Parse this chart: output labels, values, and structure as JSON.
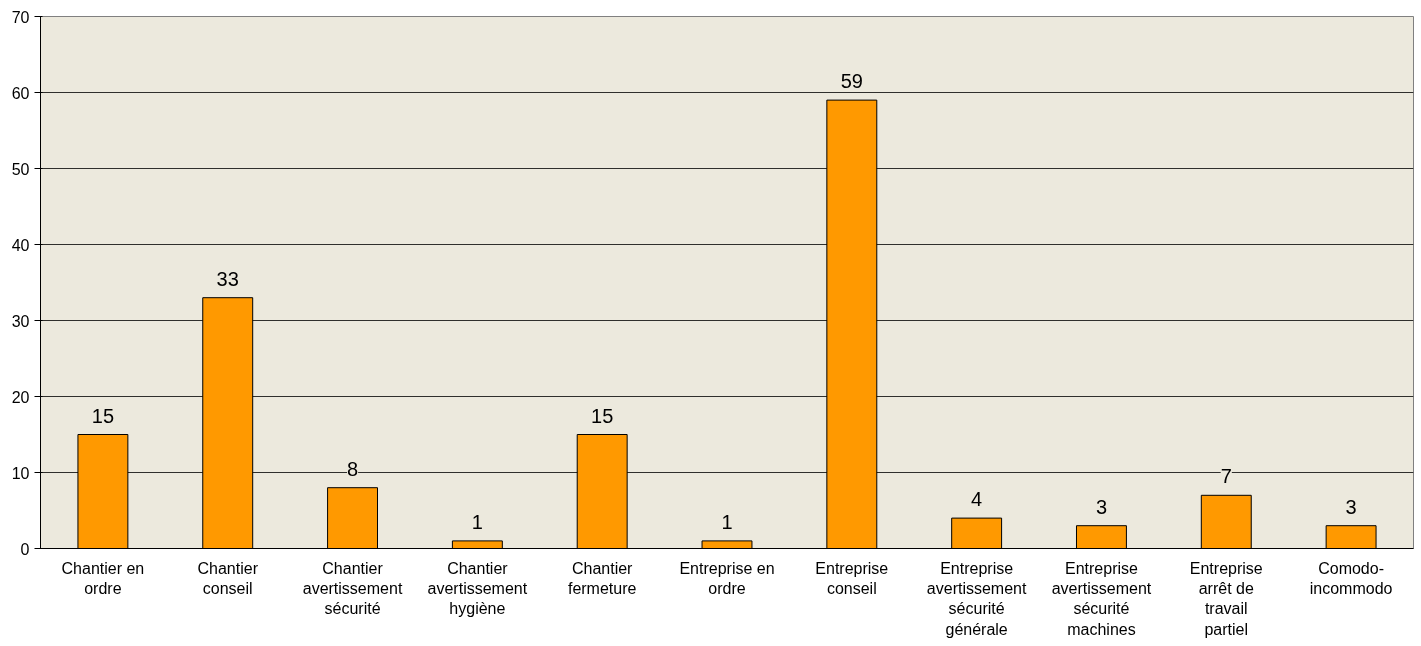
{
  "chart_data": {
    "type": "bar",
    "categories": [
      "Chantier en ordre",
      "Chantier conseil",
      "Chantier avertissement sécurité",
      "Chantier avertissement hygiène",
      "Chantier fermeture",
      "Entreprise en ordre",
      "Entreprise conseil",
      "Entreprise avertissement sécurité générale",
      "Entreprise avertissement sécurité machines",
      "Entreprise arrêt de travail partiel",
      "Comodo-incommodo"
    ],
    "values": [
      15,
      33,
      8,
      1,
      15,
      1,
      59,
      4,
      3,
      7,
      3
    ],
    "color": "#ff9900",
    "ylim": [
      0,
      70
    ],
    "yticks": [
      0,
      10,
      20,
      30,
      40,
      50,
      60,
      70
    ],
    "grid": "y",
    "data_labels": true
  }
}
